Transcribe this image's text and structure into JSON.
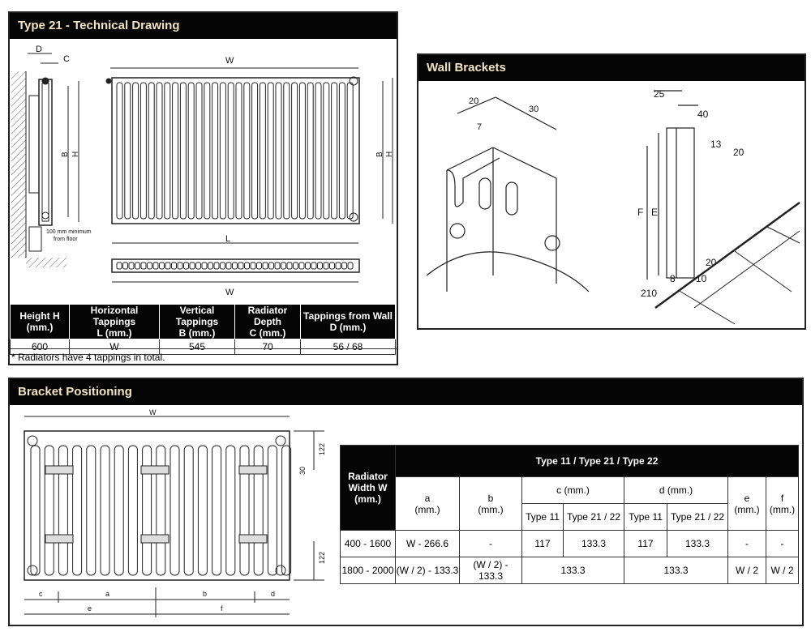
{
  "technical_drawing": {
    "title": "Type 21 - Technical Drawing",
    "labels": {
      "D": "D",
      "C": "C",
      "B": "B",
      "H": "H",
      "W": "W",
      "L": "L",
      "floor_note_1": "100 mm minimum",
      "floor_note_2": "from floor"
    },
    "table": {
      "headers": [
        [
          "Height H",
          "(mm.)"
        ],
        [
          "Horizontal Tappings",
          "L (mm.)"
        ],
        [
          "Vertical Tappings",
          "B (mm.)"
        ],
        [
          "Radiator Depth",
          "C (mm.)"
        ],
        [
          "Tappings from Wall",
          "D (mm.)"
        ]
      ],
      "row": [
        "600",
        "W",
        "545",
        "70",
        "56 / 68"
      ]
    },
    "note": "* Radiators have 4 tappings in total."
  },
  "wall_brackets": {
    "title": "Wall Brackets",
    "labels": {
      "d20": "20",
      "d30": "30",
      "d7": "7",
      "d25": "25",
      "d40": "40",
      "d13": "13",
      "d20b": "20",
      "F": "F",
      "E": "E",
      "d20c": "20",
      "d8": "8",
      "d10": "10",
      "d210": "210"
    }
  },
  "bracket_positioning": {
    "title": "Bracket Positioning",
    "labels": {
      "W": "W",
      "d122a": "122",
      "d30": "30",
      "d122b": "122",
      "c": "c",
      "a": "a",
      "b": "b",
      "d": "d",
      "e": "e",
      "f": "f"
    },
    "table": {
      "row_header": [
        "Radiator",
        "Width W",
        "(mm.)"
      ],
      "group_header": "Type 11 / Type 21 / Type 22",
      "col_a": [
        "a",
        "(mm.)"
      ],
      "col_b": [
        "b",
        "(mm.)"
      ],
      "col_c": "c (mm.)",
      "col_d": "d (mm.)",
      "col_e": [
        "e",
        "(mm.)"
      ],
      "col_f": [
        "f",
        "(mm.)"
      ],
      "sub": [
        "Type 11",
        "Type 21 / 22",
        "Type 11",
        "Type 21 / 22"
      ],
      "rows": [
        [
          "400 - 1600",
          "W - 266.6",
          "-",
          "117",
          "133.3",
          "117",
          "133.3",
          "-",
          "-"
        ],
        [
          "1800 - 2000",
          "(W / 2) - 133.3",
          "(W / 2) - 133.3",
          "133.3",
          "133.3",
          "W / 2",
          "W / 2"
        ]
      ]
    }
  },
  "colors": {
    "header_bg": "#050505",
    "header_text": "#f3e3c3"
  }
}
